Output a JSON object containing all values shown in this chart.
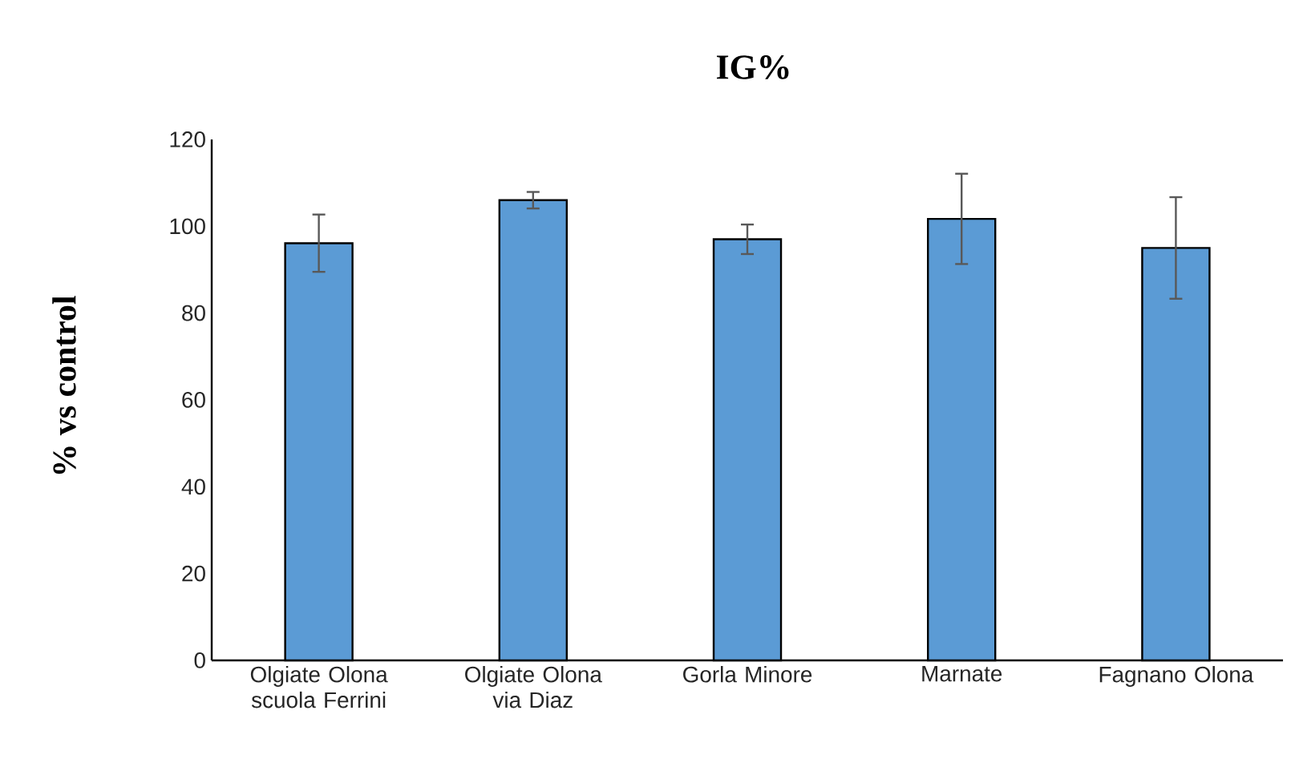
{
  "chart_data": {
    "type": "bar",
    "title": "IG%",
    "ylabel": "% vs control",
    "categories": [
      "Olgiate Olona scuola Ferrini",
      "Olgiate Olona via Diaz",
      "Gorla Minore",
      "Marnate",
      "Fagnano Olona"
    ],
    "values": [
      96.1,
      106.0,
      97.0,
      101.7,
      95.0
    ],
    "errors": [
      6.6,
      1.9,
      3.4,
      10.4,
      11.7
    ],
    "color": "#5b9bd5",
    "ylim": [
      0,
      120
    ],
    "yticks": [
      0,
      20,
      40,
      60,
      80,
      100,
      120
    ]
  }
}
